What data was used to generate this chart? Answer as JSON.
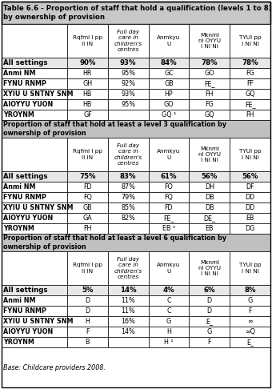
{
  "title_line1": "Table 6.6 - Proportion of staff that hold a qualification (levels 1 to 8)",
  "title_line2": "by ownership of provision",
  "col_headers": [
    "",
    "Rqfml I pp\nII IN",
    "Full day\ncare in\nchildren's\ncentres",
    "Anmkyu\nU",
    "Mknml\nnl OYYU\nI NI NI",
    "TYUI pp\nI NI NI"
  ],
  "section1_rows": [
    [
      "All settings",
      "90%",
      "93%",
      "84%",
      "78%",
      "78%"
    ],
    [
      "Anmi NM",
      "HR",
      "95%",
      "GC",
      "GO",
      "FG"
    ],
    [
      "FYNU RNMP",
      "GH",
      "92%",
      "GB",
      "FE_",
      "FF"
    ],
    [
      "XYIU U SNTNY SNM",
      "HB",
      "93%",
      "HP",
      "FH",
      "GQ"
    ],
    [
      "AIOYYU YUON",
      "HB",
      "95%",
      "GO",
      "FG",
      "FE_"
    ],
    [
      "YROYNM",
      "GF",
      "",
      "GQ ¹",
      "GQ",
      "FH"
    ]
  ],
  "section2_title": "Proportion of staff that hold at least a level 3 qualification by\nownership of provision",
  "section2_col_headers": [
    "",
    "Rqfml I pp\nII IN",
    "Full day\ncare in\nchildren's\ncentres",
    "Anmkyu\nU",
    "Mknml\nnl OYYU\nI NI NI",
    "TYUI pp\nI NI NI"
  ],
  "section2_rows": [
    [
      "All settings",
      "75%",
      "83%",
      "61%",
      "56%",
      "56%"
    ],
    [
      "Anmi NM",
      "FD",
      "87%",
      "FO",
      "DH",
      "DF"
    ],
    [
      "FYNU RNMP",
      "FQ",
      "79%",
      "FQ",
      "DB",
      "DD"
    ],
    [
      "XYIU U SNTNY SNM",
      "GB",
      "85%",
      "FD",
      "DB",
      "DD"
    ],
    [
      "AIOYYU YUON",
      "GA",
      "82%",
      "FE_",
      "DE_",
      "EB"
    ],
    [
      "YROYNM",
      "FH",
      "",
      "EB ¹",
      "EB",
      "DG"
    ]
  ],
  "section3_title": "Proportion of staff that hold at least a level 6 qualification by\nownership of provision",
  "section3_col_headers": [
    "",
    "Rqfml I pp\nII IN",
    "Full day\ncare in\nchildren's\ncentres",
    "Anmkyu\nU",
    "Mknml\nnl OYYU\nI NI NI",
    "TYUI pp\nI NI NI"
  ],
  "section3_rows": [
    [
      "All settings",
      "5%",
      "14%",
      "4%",
      "6%",
      "8%"
    ],
    [
      "Anmi NM",
      "D",
      "11%",
      "C",
      "D",
      "G"
    ],
    [
      "FYNU RNMP",
      "D",
      "11%",
      "C",
      "D",
      "F"
    ],
    [
      "XYIU U SNTNY SNM",
      "H",
      "16%",
      "G",
      "E_",
      "∞"
    ],
    [
      "AIOYYU YUON",
      "F",
      "14%",
      "H",
      "G",
      "∞Q"
    ],
    [
      "YROYNM",
      "B",
      "",
      "H ¹",
      "F",
      "E_"
    ]
  ],
  "base_text": "Base: Childcare providers 2008.",
  "title_bg": "#c8c8c8",
  "section_title_bg": "#c0c0c0",
  "all_settings_bg": "#e8e8e8",
  "header_bg": "#ffffff",
  "regular_bg": "#ffffff",
  "border_color": "#000000"
}
